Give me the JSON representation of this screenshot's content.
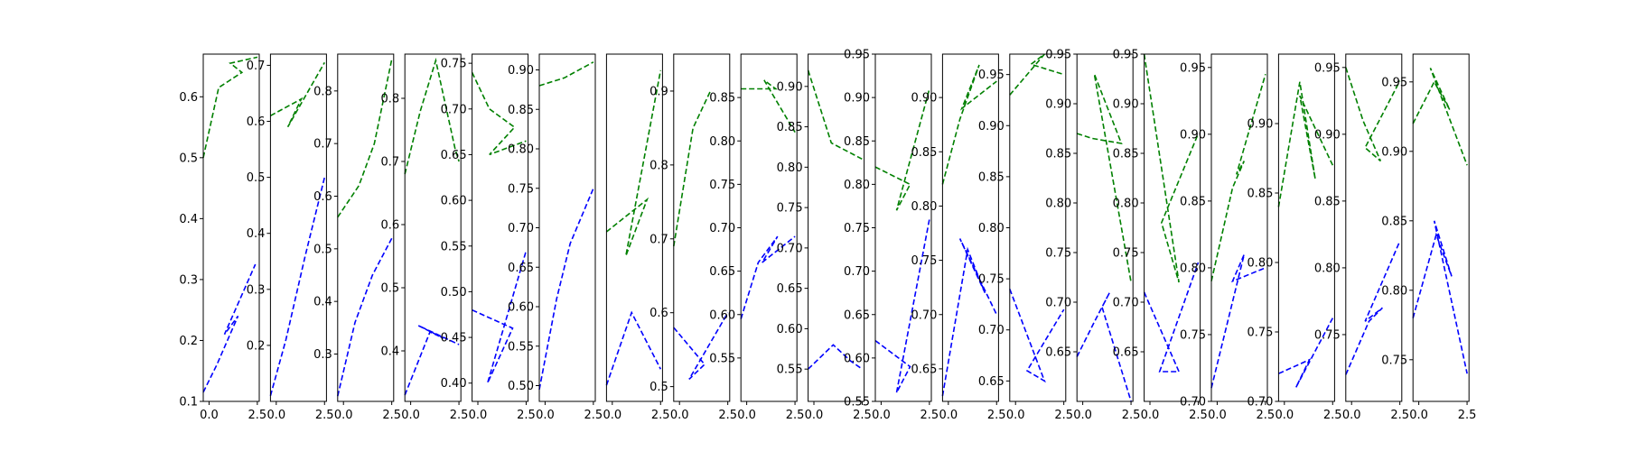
{
  "chart_data": [
    {
      "type": "line",
      "xticks": [
        "0.0",
        "2.5"
      ],
      "xlim": [
        -0.3,
        2.6
      ],
      "ylim": [
        0.1,
        0.67
      ],
      "yticks": [
        0.1,
        0.2,
        0.3,
        0.4,
        0.5,
        0.6
      ],
      "ytick_labels": [
        "0.1",
        "0.2",
        "0.3",
        "0.4",
        "0.5",
        "0.6"
      ],
      "series": [
        {
          "color": "#008000",
          "x": [
            -0.3,
            0.5,
            1.7,
            1.1,
            2.5
          ],
          "y": [
            0.5,
            0.615,
            0.64,
            0.655,
            0.665
          ]
        },
        {
          "color": "#0000ff",
          "x": [
            -0.3,
            0.4,
            1.5,
            0.8,
            2.4
          ],
          "y": [
            0.115,
            0.16,
            0.24,
            0.21,
            0.325
          ]
        }
      ]
    },
    {
      "type": "line",
      "xticks": [
        "0.0",
        "2.5"
      ],
      "xlim": [
        -0.3,
        2.6
      ],
      "ylim": [
        0.1,
        0.72
      ],
      "yticks": [
        0.2,
        0.3,
        0.4,
        0.5,
        0.6,
        0.7
      ],
      "ytick_labels": [
        "0.2",
        "0.3",
        "0.4",
        "0.5",
        "0.6",
        "0.7"
      ],
      "series": [
        {
          "color": "#008000",
          "x": [
            -0.3,
            1.3,
            0.6,
            2.5
          ],
          "y": [
            0.61,
            0.64,
            0.59,
            0.705
          ]
        },
        {
          "color": "#0000ff",
          "x": [
            -0.3,
            0.5,
            1.5,
            2.5
          ],
          "y": [
            0.11,
            0.21,
            0.36,
            0.5
          ]
        }
      ]
    },
    {
      "type": "line",
      "xticks": [
        "0.0",
        "2.5"
      ],
      "xlim": [
        -0.3,
        2.6
      ],
      "ylim": [
        0.21,
        0.87
      ],
      "yticks": [
        0.3,
        0.4,
        0.5,
        0.6,
        0.7,
        0.8
      ],
      "ytick_labels": [
        "0.3",
        "0.4",
        "0.5",
        "0.6",
        "0.7",
        "0.8"
      ],
      "series": [
        {
          "color": "#008000",
          "x": [
            -0.3,
            0.8,
            1.6,
            2.5
          ],
          "y": [
            0.56,
            0.62,
            0.7,
            0.86
          ]
        },
        {
          "color": "#0000ff",
          "x": [
            -0.3,
            0.6,
            1.5,
            2.5
          ],
          "y": [
            0.22,
            0.36,
            0.45,
            0.52
          ]
        }
      ]
    },
    {
      "type": "line",
      "xticks": [
        "0.0",
        "2.5"
      ],
      "xlim": [
        -0.3,
        2.6
      ],
      "ylim": [
        0.32,
        0.87
      ],
      "yticks": [
        0.4,
        0.5,
        0.6,
        0.7,
        0.8
      ],
      "ytick_labels": [
        "0.4",
        "0.5",
        "0.6",
        "0.7",
        "0.8"
      ],
      "series": [
        {
          "color": "#008000",
          "x": [
            -0.3,
            0.5,
            1.3,
            2.3,
            2.5
          ],
          "y": [
            0.68,
            0.78,
            0.86,
            0.72,
            0.7
          ]
        },
        {
          "color": "#0000ff",
          "x": [
            -0.3,
            1.0,
            1.7,
            0.4,
            2.5
          ],
          "y": [
            0.33,
            0.43,
            0.42,
            0.44,
            0.41
          ]
        }
      ]
    },
    {
      "type": "line",
      "xticks": [
        "0.0",
        "2.5"
      ],
      "xlim": [
        -0.3,
        2.6
      ],
      "ylim": [
        0.38,
        0.76
      ],
      "yticks": [
        0.4,
        0.45,
        0.5,
        0.55,
        0.6,
        0.65,
        0.7,
        0.75
      ],
      "ytick_labels": [
        "0.40",
        "0.45",
        "0.50",
        "0.55",
        "0.60",
        "0.65",
        "0.70",
        "0.75"
      ],
      "series": [
        {
          "color": "#008000",
          "x": [
            -0.3,
            0.6,
            1.9,
            0.6,
            2.5
          ],
          "y": [
            0.74,
            0.7,
            0.68,
            0.65,
            0.665
          ]
        },
        {
          "color": "#0000ff",
          "x": [
            -0.3,
            1.8,
            0.5,
            2.5
          ],
          "y": [
            0.48,
            0.46,
            0.4,
            0.545
          ]
        }
      ]
    },
    {
      "type": "line",
      "xticks": [
        "0.0",
        "2.5"
      ],
      "xlim": [
        -0.3,
        2.6
      ],
      "ylim": [
        0.48,
        0.92
      ],
      "yticks": [
        0.5,
        0.55,
        0.6,
        0.65,
        0.7,
        0.75,
        0.8,
        0.85,
        0.9
      ],
      "ytick_labels": [
        "0.50",
        "0.55",
        "0.60",
        "0.65",
        "0.70",
        "0.75",
        "0.80",
        "0.85",
        "0.90"
      ],
      "series": [
        {
          "color": "#008000",
          "x": [
            -0.3,
            1.0,
            2.5
          ],
          "y": [
            0.88,
            0.89,
            0.91
          ]
        },
        {
          "color": "#0000ff",
          "x": [
            -0.3,
            0.6,
            1.3,
            2.5
          ],
          "y": [
            0.495,
            0.61,
            0.68,
            0.75
          ]
        }
      ]
    },
    {
      "type": "line",
      "xticks": [
        "0.0",
        "2.5"
      ],
      "xlim": [
        -0.3,
        2.6
      ],
      "ylim": [
        0.49,
        0.92
      ],
      "yticks": [],
      "ytick_labels": [],
      "series": [
        {
          "color": "#008000",
          "x": [
            -0.3,
            1.8,
            0.7,
            2.5
          ],
          "y": [
            0.7,
            0.74,
            0.67,
            0.9
          ]
        },
        {
          "color": "#0000ff",
          "x": [
            -0.3,
            1.0,
            2.5
          ],
          "y": [
            0.51,
            0.6,
            0.53
          ]
        }
      ]
    },
    {
      "type": "line",
      "xticks": [
        "0.0",
        "2.5"
      ],
      "xlim": [
        -0.3,
        2.6
      ],
      "ylim": [
        0.48,
        0.95
      ],
      "yticks": [
        0.5,
        0.6,
        0.7,
        0.8,
        0.9
      ],
      "ytick_labels": [
        "0.5",
        "0.6",
        "0.7",
        "0.8",
        "0.9"
      ],
      "series": [
        {
          "color": "#008000",
          "x": [
            -0.3,
            0.7,
            1.6
          ],
          "y": [
            0.69,
            0.85,
            0.9
          ]
        },
        {
          "color": "#0000ff",
          "x": [
            -0.3,
            1.3,
            0.5,
            2.5
          ],
          "y": [
            0.58,
            0.53,
            0.51,
            0.6
          ]
        }
      ]
    },
    {
      "type": "line",
      "xticks": [
        "0.0",
        "2.5"
      ],
      "xlim": [
        -0.3,
        2.6
      ],
      "ylim": [
        0.5,
        0.9
      ],
      "yticks": [
        0.55,
        0.6,
        0.65,
        0.7,
        0.75,
        0.8,
        0.85
      ],
      "ytick_labels": [
        "0.55",
        "0.60",
        "0.65",
        "0.70",
        "0.75",
        "0.80",
        "0.85"
      ],
      "series": [
        {
          "color": "#008000",
          "x": [
            -0.3,
            1.5,
            0.9,
            2.5
          ],
          "y": [
            0.86,
            0.86,
            0.87,
            0.81
          ]
        },
        {
          "color": "#0000ff",
          "x": [
            -0.3,
            0.6,
            1.6,
            0.8,
            2.5
          ],
          "y": [
            0.595,
            0.66,
            0.69,
            0.66,
            0.69
          ]
        }
      ]
    },
    {
      "type": "line",
      "xticks": [
        "0.0",
        "2.5"
      ],
      "xlim": [
        -0.3,
        2.6
      ],
      "ylim": [
        0.51,
        0.94
      ],
      "yticks": [
        0.55,
        0.6,
        0.65,
        0.7,
        0.75,
        0.8,
        0.85,
        0.9
      ],
      "ytick_labels": [
        "0.55",
        "0.60",
        "0.65",
        "0.70",
        "0.75",
        "0.80",
        "0.85",
        "0.90"
      ],
      "series": [
        {
          "color": "#008000",
          "x": [
            -0.3,
            0.9,
            2.5
          ],
          "y": [
            0.92,
            0.83,
            0.81
          ]
        },
        {
          "color": "#0000ff",
          "x": [
            -0.3,
            1.0,
            1.9,
            2.5
          ],
          "y": [
            0.55,
            0.58,
            0.56,
            0.55
          ]
        }
      ]
    },
    {
      "type": "line",
      "xticks": [
        "0.0",
        "2.5"
      ],
      "xlim": [
        -0.3,
        2.6
      ],
      "ylim": [
        0.55,
        0.95
      ],
      "yticks": [
        0.55,
        0.6,
        0.65,
        0.7,
        0.75,
        0.8,
        0.85,
        0.9,
        0.95
      ],
      "ytick_labels": [
        "0.55",
        "0.60",
        "0.65",
        "0.70",
        "0.75",
        "0.80",
        "0.85",
        "0.90",
        "0.95"
      ],
      "series": [
        {
          "color": "#008000",
          "x": [
            -0.3,
            1.5,
            0.8,
            2.5
          ],
          "y": [
            0.82,
            0.8,
            0.77,
            0.91
          ]
        },
        {
          "color": "#0000ff",
          "x": [
            -0.3,
            1.5,
            0.8,
            2.5
          ],
          "y": [
            0.62,
            0.59,
            0.56,
            0.76
          ]
        }
      ]
    },
    {
      "type": "line",
      "xticks": [
        "0.0",
        "2.5"
      ],
      "xlim": [
        -0.3,
        2.6
      ],
      "ylim": [
        0.62,
        0.94
      ],
      "yticks": [
        0.65,
        0.7,
        0.75,
        0.8,
        0.85,
        0.9
      ],
      "ytick_labels": [
        "0.65",
        "0.70",
        "0.75",
        "0.80",
        "0.85",
        "0.90"
      ],
      "series": [
        {
          "color": "#008000",
          "x": [
            -0.3,
            0.6,
            1.6,
            0.7,
            2.5
          ],
          "y": [
            0.82,
            0.88,
            0.93,
            0.89,
            0.915
          ]
        },
        {
          "color": "#0000ff",
          "x": [
            -0.3,
            1.0,
            1.9,
            0.6,
            2.5
          ],
          "y": [
            0.625,
            0.76,
            0.72,
            0.77,
            0.7
          ]
        }
      ]
    },
    {
      "type": "line",
      "xticks": [
        "0.0",
        "2.5"
      ],
      "xlim": [
        -0.3,
        2.6
      ],
      "ylim": [
        0.63,
        0.97
      ],
      "yticks": [
        0.65,
        0.7,
        0.75,
        0.8,
        0.85,
        0.9,
        0.95
      ],
      "ytick_labels": [
        "0.65",
        "0.70",
        "0.75",
        "0.80",
        "0.85",
        "0.90",
        "0.95"
      ],
      "series": [
        {
          "color": "#008000",
          "x": [
            -0.3,
            1.5,
            0.8,
            2.5
          ],
          "y": [
            0.93,
            0.97,
            0.96,
            0.95
          ]
        },
        {
          "color": "#0000ff",
          "x": [
            -0.3,
            1.5,
            0.6,
            2.5
          ],
          "y": [
            0.74,
            0.65,
            0.66,
            0.72
          ]
        }
      ]
    },
    {
      "type": "line",
      "xticks": [
        "0.0",
        "2.5"
      ],
      "xlim": [
        -0.3,
        2.6
      ],
      "ylim": [
        0.6,
        0.95
      ],
      "yticks": [
        0.65,
        0.7,
        0.75,
        0.8,
        0.85,
        0.9,
        0.95
      ],
      "ytick_labels": [
        "0.65",
        "0.70",
        "0.75",
        "0.80",
        "0.85",
        "0.90",
        "0.95"
      ],
      "series": [
        {
          "color": "#008000",
          "x": [
            -0.3,
            0.5,
            2.0,
            0.6,
            2.5
          ],
          "y": [
            0.87,
            0.865,
            0.86,
            0.93,
            0.72
          ]
        },
        {
          "color": "#0000ff",
          "x": [
            -0.3,
            0.6,
            1.4,
            1.0,
            2.5
          ],
          "y": [
            0.645,
            0.68,
            0.71,
            0.695,
            0.6
          ]
        }
      ]
    },
    {
      "type": "line",
      "xticks": [
        "0.0",
        "2.5"
      ],
      "xlim": [
        -0.3,
        2.6
      ],
      "ylim": [
        0.6,
        0.95
      ],
      "yticks": [
        0.65,
        0.7,
        0.75,
        0.8,
        0.85,
        0.9,
        0.95
      ],
      "ytick_labels": [
        "0.65",
        "0.70",
        "0.75",
        "0.80",
        "0.85",
        "0.90",
        "0.95"
      ],
      "series": [
        {
          "color": "#008000",
          "x": [
            -0.3,
            1.5,
            0.6,
            2.5
          ],
          "y": [
            0.95,
            0.72,
            0.78,
            0.87
          ]
        },
        {
          "color": "#0000ff",
          "x": [
            -0.3,
            1.5,
            0.5,
            2.5
          ],
          "y": [
            0.71,
            0.63,
            0.63,
            0.74
          ]
        }
      ]
    },
    {
      "type": "line",
      "xticks": [
        "0.0",
        "2.5"
      ],
      "xlim": [
        -0.3,
        2.6
      ],
      "ylim": [
        0.7,
        0.96
      ],
      "yticks": [
        0.7,
        0.75,
        0.8,
        0.85,
        0.9,
        0.95
      ],
      "ytick_labels": [
        "0.70",
        "0.75",
        "0.80",
        "0.85",
        "0.90",
        "0.95"
      ],
      "series": [
        {
          "color": "#008000",
          "x": [
            -0.3,
            0.8,
            1.4,
            1.0,
            2.5
          ],
          "y": [
            0.79,
            0.86,
            0.88,
            0.87,
            0.945
          ]
        },
        {
          "color": "#0000ff",
          "x": [
            -0.3,
            1.4,
            0.8,
            2.5
          ],
          "y": [
            0.71,
            0.81,
            0.79,
            0.8
          ]
        }
      ]
    },
    {
      "type": "line",
      "xticks": [
        "0.0",
        "2.5"
      ],
      "xlim": [
        -0.3,
        2.6
      ],
      "ylim": [
        0.7,
        0.95
      ],
      "yticks": [
        0.7,
        0.75,
        0.8,
        0.85,
        0.9
      ],
      "ytick_labels": [
        "0.70",
        "0.75",
        "0.80",
        "0.85",
        "0.90"
      ],
      "series": [
        {
          "color": "#008000",
          "x": [
            -0.3,
            0.8,
            1.6,
            0.8,
            2.5
          ],
          "y": [
            0.84,
            0.93,
            0.86,
            0.92,
            0.87
          ]
        },
        {
          "color": "#0000ff",
          "x": [
            -0.3,
            1.3,
            0.6,
            2.5
          ],
          "y": [
            0.72,
            0.73,
            0.71,
            0.76
          ]
        }
      ]
    },
    {
      "type": "line",
      "xticks": [
        "0.0",
        "2.5"
      ],
      "xlim": [
        -0.3,
        2.6
      ],
      "ylim": [
        0.7,
        0.96
      ],
      "yticks": [
        0.75,
        0.8,
        0.85,
        0.9,
        0.95
      ],
      "ytick_labels": [
        "0.75",
        "0.80",
        "0.85",
        "0.90",
        "0.95"
      ],
      "series": [
        {
          "color": "#008000",
          "x": [
            -0.3,
            0.6,
            1.5,
            0.7,
            2.5
          ],
          "y": [
            0.95,
            0.91,
            0.88,
            0.89,
            0.94
          ]
        },
        {
          "color": "#0000ff",
          "x": [
            -0.3,
            0.9,
            1.6,
            0.7,
            2.5
          ],
          "y": [
            0.72,
            0.76,
            0.77,
            0.76,
            0.82
          ]
        }
      ]
    },
    {
      "type": "line",
      "xticks": [
        "0.0",
        "2.5"
      ],
      "xlim": [
        -0.3,
        2.6
      ],
      "ylim": [
        0.72,
        0.97
      ],
      "yticks": [
        0.75,
        0.8,
        0.85,
        0.9,
        0.95
      ],
      "ytick_labels": [
        "0.75",
        "0.80",
        "0.85",
        "0.90",
        "0.95"
      ],
      "series": [
        {
          "color": "#008000",
          "x": [
            -0.3,
            0.8,
            1.6,
            0.6,
            2.5
          ],
          "y": [
            0.92,
            0.95,
            0.93,
            0.96,
            0.89
          ]
        },
        {
          "color": "#0000ff",
          "x": [
            -0.3,
            0.9,
            1.7,
            0.8,
            2.5
          ],
          "y": [
            0.78,
            0.84,
            0.81,
            0.85,
            0.74
          ]
        }
      ]
    }
  ]
}
